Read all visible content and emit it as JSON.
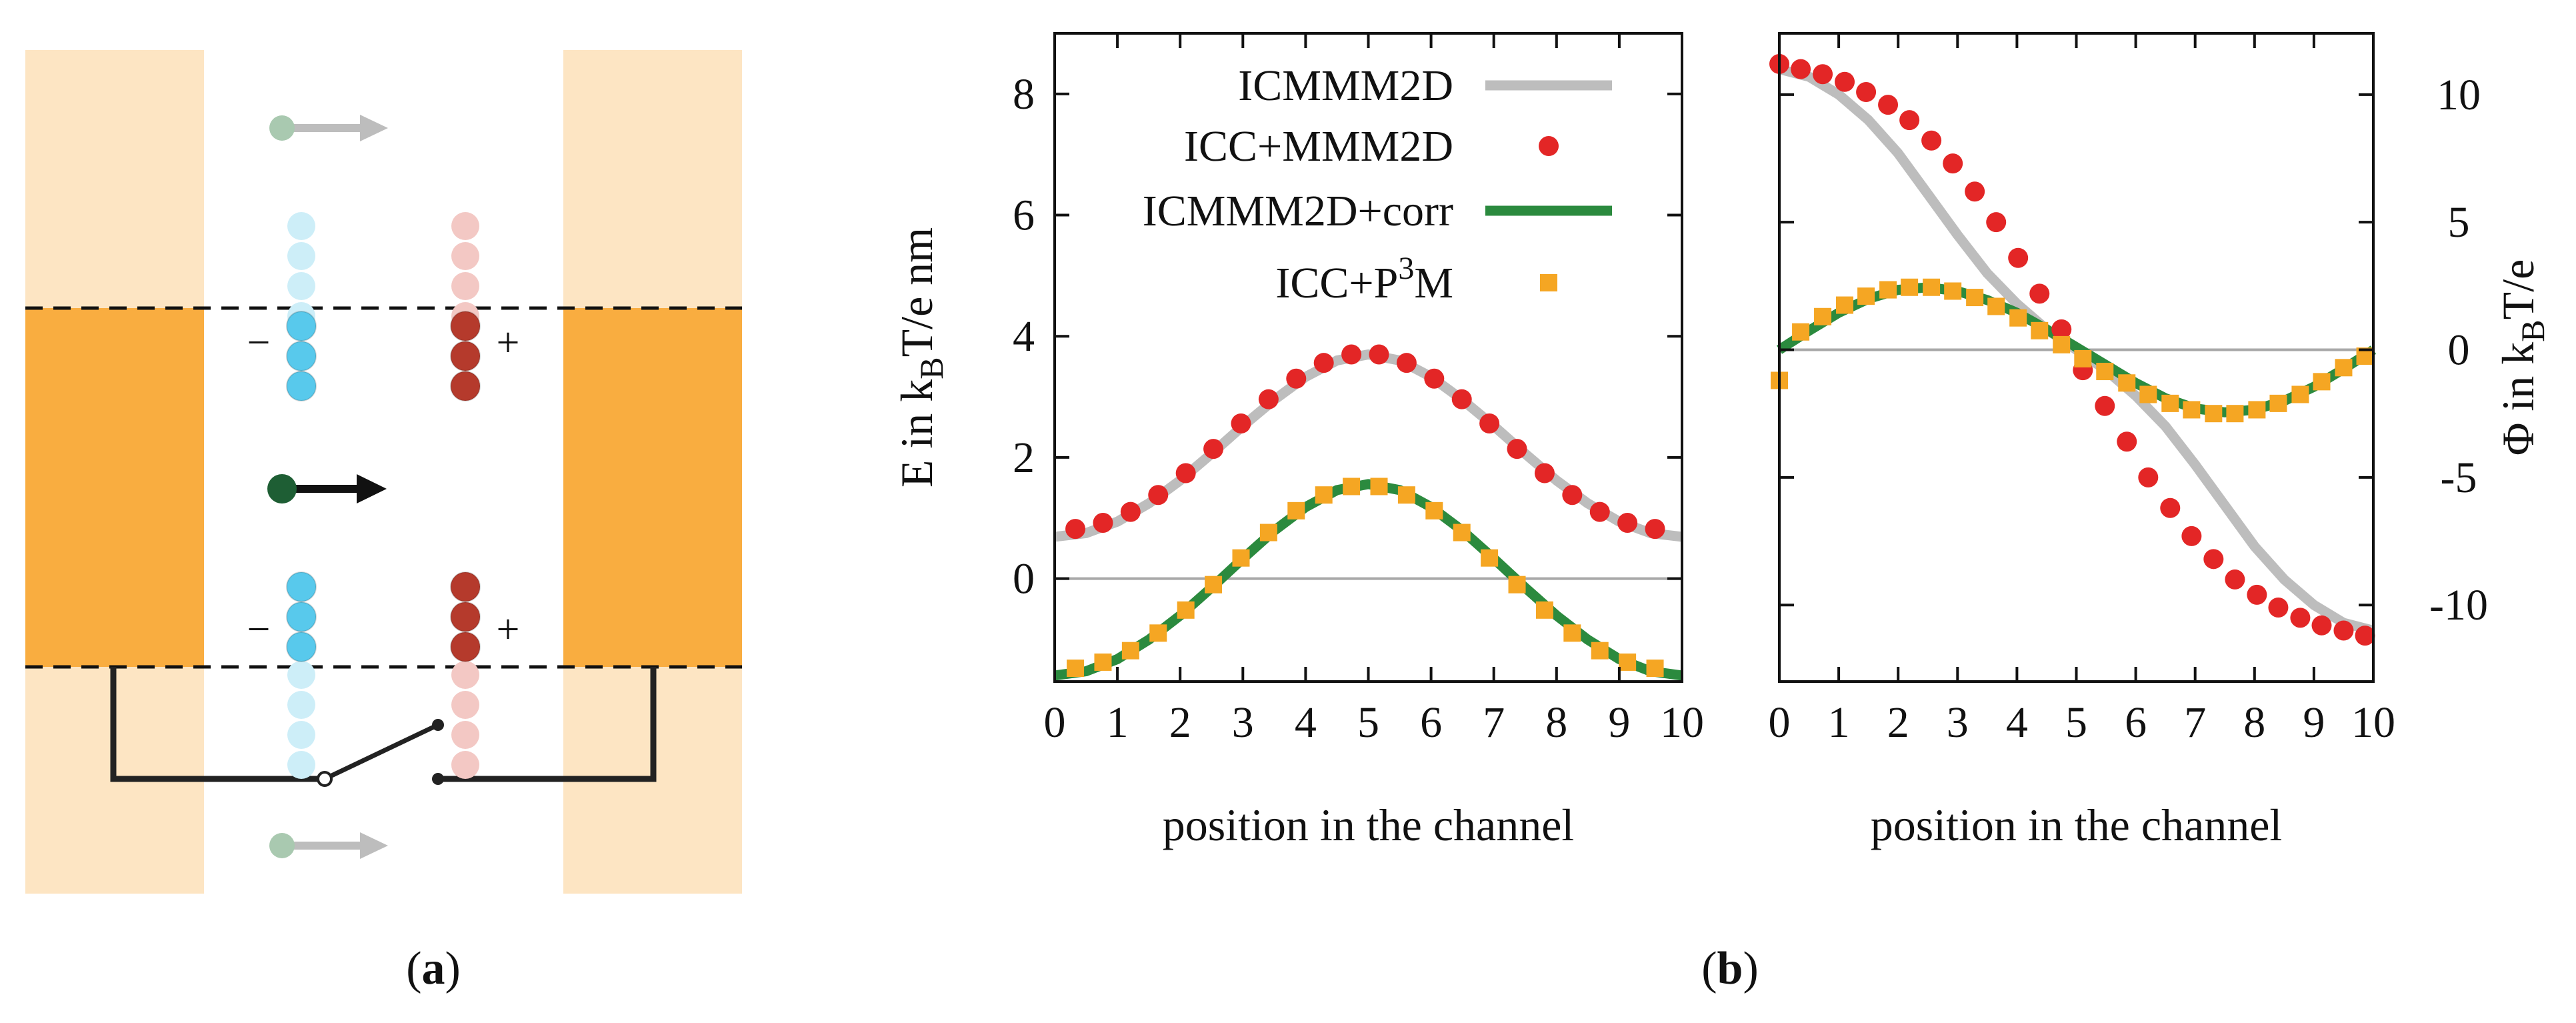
{
  "colors": {
    "pale_orange": "#fde5c3",
    "orange": "#f9ad40",
    "blue_faint": "#cdeef8",
    "blue": "#58c9ec",
    "red_faint": "#f3c8c4",
    "red": "#b53a2c",
    "green_dark": "#1e5e34",
    "arrow_grey": "#bdbdbd",
    "ball_grey": "#a9c9b0",
    "wire": "#222222",
    "curve_grey": "#bdbdbd",
    "curve_green": "#2b8a3e",
    "dot_red": "#e32626",
    "square_orange": "#f5a623",
    "zero_line": "#a8a8a8"
  },
  "panel_a": {
    "label": "a",
    "minus_top": "−",
    "plus_top": "+",
    "minus_bottom": "−",
    "plus_bottom": "+"
  },
  "panel_b": {
    "label": "b"
  },
  "chart_data": [
    {
      "type": "line",
      "name": "energy",
      "title": "",
      "xlabel": "position in the channel",
      "ylabel": "E in k_B T/e nm",
      "ylabel_parts": {
        "main": "E in k",
        "sub": "B",
        "rest": "T/e nm"
      },
      "xlim": [
        0,
        10
      ],
      "ylim": [
        -1.7,
        9
      ],
      "xticks": [
        0,
        1,
        2,
        3,
        4,
        5,
        6,
        7,
        8,
        9,
        10
      ],
      "yticks": [
        0,
        2,
        4,
        6,
        8
      ],
      "zero_line": true,
      "legend_position": "top-right",
      "legend": [
        {
          "label": "ICMMM2D",
          "style": "line",
          "color": "#bdbdbd"
        },
        {
          "label": "ICC+MMM2D",
          "style": "dot",
          "color": "#e32626"
        },
        {
          "label": "ICMMM2D+corr",
          "style": "line",
          "color": "#2b8a3e"
        },
        {
          "label": "ICC+P³M",
          "style": "square",
          "color": "#f5a623",
          "label_parts": {
            "main": "ICC+P",
            "sup": "3",
            "rest": "M"
          }
        }
      ],
      "x": [
        0.33,
        0.77,
        1.21,
        1.65,
        2.09,
        2.53,
        2.97,
        3.41,
        3.85,
        4.29,
        4.73,
        5.17,
        5.61,
        6.05,
        6.49,
        6.93,
        7.37,
        7.81,
        8.25,
        8.69,
        9.13,
        9.57
      ],
      "series": [
        {
          "name": "ICMMM2D",
          "kind": "line",
          "color": "#bdbdbd",
          "x": [
            0,
            0.5,
            1,
            1.5,
            2,
            2.5,
            3,
            3.5,
            4,
            4.5,
            5,
            5.5,
            6,
            6.5,
            7,
            7.5,
            8,
            8.5,
            9,
            9.5,
            10
          ],
          "values": [
            0.69,
            0.75,
            0.94,
            1.24,
            1.62,
            2.06,
            2.52,
            2.95,
            3.33,
            3.6,
            3.7,
            3.6,
            3.33,
            2.95,
            2.52,
            2.06,
            1.62,
            1.24,
            0.94,
            0.75,
            0.69
          ]
        },
        {
          "name": "ICC+MMM2D",
          "kind": "dot",
          "color": "#e32626",
          "values": [
            0.82,
            0.92,
            1.1,
            1.38,
            1.74,
            2.14,
            2.56,
            2.96,
            3.3,
            3.56,
            3.7,
            3.7,
            3.56,
            3.3,
            2.96,
            2.56,
            2.14,
            1.74,
            1.38,
            1.1,
            0.92,
            0.82
          ]
        },
        {
          "name": "ICMMM2D+corr",
          "kind": "line",
          "color": "#2b8a3e",
          "x": [
            0,
            0.5,
            1,
            1.5,
            2,
            2.5,
            3,
            3.5,
            4,
            4.5,
            5,
            5.5,
            6,
            6.5,
            7,
            7.5,
            8,
            8.5,
            9,
            9.5,
            10
          ],
          "values": [
            -1.6,
            -1.53,
            -1.33,
            -1.01,
            -0.61,
            -0.15,
            0.33,
            0.79,
            1.18,
            1.46,
            1.56,
            1.46,
            1.18,
            0.79,
            0.33,
            -0.15,
            -0.61,
            -1.01,
            -1.33,
            -1.53,
            -1.6
          ]
        },
        {
          "name": "ICC+P³M",
          "kind": "square",
          "color": "#f5a623",
          "values": [
            -1.48,
            -1.38,
            -1.19,
            -0.9,
            -0.52,
            -0.1,
            0.34,
            0.76,
            1.12,
            1.38,
            1.52,
            1.52,
            1.38,
            1.12,
            0.76,
            0.34,
            -0.1,
            -0.52,
            -0.9,
            -1.19,
            -1.38,
            -1.48
          ]
        }
      ]
    },
    {
      "type": "line",
      "name": "potential",
      "title": "",
      "xlabel": "position in the channel",
      "ylabel": "Φ in k_B T/e",
      "ylabel_parts": {
        "main": "Φ in k",
        "sub": "B",
        "rest": "T/e"
      },
      "xlim": [
        0,
        10
      ],
      "ylim": [
        -13,
        12.4
      ],
      "xticks": [
        0,
        1,
        2,
        3,
        4,
        5,
        6,
        7,
        8,
        9,
        10
      ],
      "yticks": [
        -10,
        -5,
        0,
        5,
        10
      ],
      "yaxis_side": "right",
      "zero_line": true,
      "x": [
        0,
        0.36,
        0.73,
        1.1,
        1.46,
        1.83,
        2.19,
        2.56,
        2.92,
        3.29,
        3.65,
        4.02,
        4.38,
        4.75,
        5.11,
        5.48,
        5.85,
        6.21,
        6.58,
        6.94,
        7.31,
        7.67,
        8.04,
        8.4,
        8.77,
        9.13,
        9.5,
        9.86
      ],
      "series": [
        {
          "name": "ICMMM2D",
          "kind": "line",
          "color": "#bdbdbd",
          "x": [
            0,
            0.5,
            1,
            1.5,
            2,
            2.5,
            3,
            3.5,
            4,
            4.5,
            5,
            5.5,
            6,
            6.5,
            7,
            7.5,
            8,
            8.5,
            9,
            9.5,
            10
          ],
          "values": [
            11.0,
            10.7,
            10.0,
            9.0,
            7.7,
            6.1,
            4.5,
            3.0,
            1.8,
            0.8,
            0,
            -0.8,
            -1.8,
            -3.0,
            -4.5,
            -6.1,
            -7.7,
            -9.0,
            -10.0,
            -10.7,
            -11.0
          ]
        },
        {
          "name": "ICC+MMM2D",
          "kind": "dot",
          "color": "#e32626",
          "values": [
            11.2,
            11.0,
            10.8,
            10.5,
            10.1,
            9.6,
            9.0,
            8.2,
            7.3,
            6.2,
            5.0,
            3.6,
            2.2,
            0.8,
            -0.8,
            -2.2,
            -3.6,
            -5.0,
            -6.2,
            -7.3,
            -8.2,
            -9.0,
            -9.6,
            -10.1,
            -10.5,
            -10.8,
            -11.0,
            -11.2
          ]
        },
        {
          "name": "ICMMM2D+corr",
          "kind": "line",
          "color": "#2b8a3e",
          "x": [
            0,
            0.5,
            1,
            1.5,
            2,
            2.5,
            3,
            3.5,
            4,
            4.5,
            5,
            5.5,
            6,
            6.5,
            7,
            7.5,
            8,
            8.5,
            9,
            9.5,
            10
          ],
          "values": [
            0,
            0.75,
            1.45,
            2.0,
            2.35,
            2.45,
            2.3,
            1.95,
            1.45,
            0.8,
            0.1,
            -0.6,
            -1.3,
            -1.9,
            -2.3,
            -2.45,
            -2.35,
            -2.0,
            -1.45,
            -0.75,
            0
          ]
        },
        {
          "name": "ICC+P³M",
          "kind": "square",
          "color": "#f5a623",
          "values": [
            -1.2,
            0.7,
            1.3,
            1.75,
            2.1,
            2.35,
            2.45,
            2.45,
            2.3,
            2.05,
            1.7,
            1.25,
            0.75,
            0.2,
            -0.35,
            -0.85,
            -1.3,
            -1.75,
            -2.1,
            -2.35,
            -2.5,
            -2.5,
            -2.35,
            -2.1,
            -1.75,
            -1.25,
            -0.7,
            -0.25
          ]
        }
      ]
    }
  ]
}
